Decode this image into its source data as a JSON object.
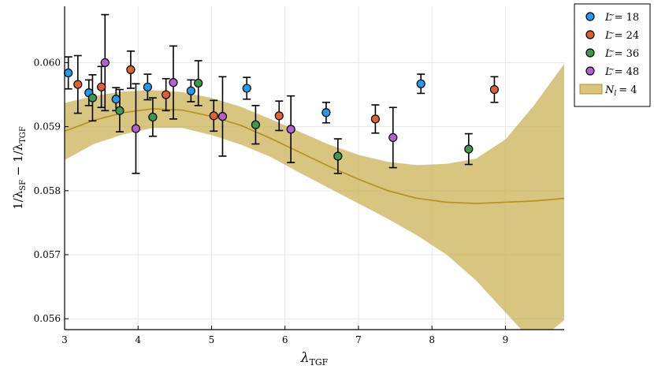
{
  "chart_data": {
    "type": "scatter",
    "xlabel_main": "λ",
    "xlabel_sub": "TGF",
    "ylabel_parts": {
      "prefix": "1/λ",
      "sub1": "SF",
      "middle": " − 1/λ",
      "sub2": "TGF"
    },
    "xlim": [
      3.0,
      9.8
    ],
    "ylim": [
      0.05583,
      0.06088
    ],
    "xticks": [
      3,
      4,
      5,
      6,
      7,
      8,
      9
    ],
    "yticks": [
      0.056,
      0.057,
      0.058,
      0.059,
      0.06
    ],
    "ytick_labels": [
      "0.056",
      "0.057",
      "0.058",
      "0.059",
      "0.060"
    ],
    "grid": true,
    "legend_position": "top-right",
    "series": [
      {
        "name": "L̃ = 18",
        "label_letter": "L",
        "label_value": "= 18",
        "color": "#1f9bf0",
        "points": [
          {
            "x": 3.05,
            "y": 0.05984,
            "err": 0.00025
          },
          {
            "x": 3.33,
            "y": 0.05953,
            "err": 0.0002
          },
          {
            "x": 3.7,
            "y": 0.05943,
            "err": 0.00018
          },
          {
            "x": 4.13,
            "y": 0.05962,
            "err": 0.0002
          },
          {
            "x": 4.72,
            "y": 0.05956,
            "err": 0.00017
          },
          {
            "x": 5.48,
            "y": 0.0596,
            "err": 0.00017
          },
          {
            "x": 6.56,
            "y": 0.05922,
            "err": 0.00016
          },
          {
            "x": 7.85,
            "y": 0.05967,
            "err": 0.00015
          }
        ]
      },
      {
        "name": "L̃ = 24",
        "label_letter": "L",
        "label_value": "= 24",
        "color": "#e0612f",
        "points": [
          {
            "x": 3.18,
            "y": 0.05966,
            "err": 0.00045
          },
          {
            "x": 3.5,
            "y": 0.05962,
            "err": 0.00032
          },
          {
            "x": 3.9,
            "y": 0.05989,
            "err": 0.00029
          },
          {
            "x": 4.38,
            "y": 0.0595,
            "err": 0.00025
          },
          {
            "x": 5.03,
            "y": 0.05917,
            "err": 0.00024
          },
          {
            "x": 5.92,
            "y": 0.05917,
            "err": 0.00023
          },
          {
            "x": 7.23,
            "y": 0.05912,
            "err": 0.00022
          },
          {
            "x": 8.85,
            "y": 0.05958,
            "err": 0.0002
          }
        ]
      },
      {
        "name": "L̃ = 36",
        "label_letter": "L",
        "label_value": "= 36",
        "color": "#3b9b4a",
        "points": [
          {
            "x": 3.38,
            "y": 0.05945,
            "err": 0.00036
          },
          {
            "x": 3.75,
            "y": 0.05925,
            "err": 0.00033
          },
          {
            "x": 4.2,
            "y": 0.05915,
            "err": 0.0003
          },
          {
            "x": 4.82,
            "y": 0.05968,
            "err": 0.00035
          },
          {
            "x": 5.6,
            "y": 0.05903,
            "err": 0.0003
          },
          {
            "x": 6.72,
            "y": 0.05854,
            "err": 0.00027
          },
          {
            "x": 8.5,
            "y": 0.05865,
            "err": 0.00024
          }
        ]
      },
      {
        "name": "L̃ = 48",
        "label_letter": "L",
        "label_value": "= 48",
        "color": "#b55fd1",
        "points": [
          {
            "x": 3.55,
            "y": 0.06,
            "err": 0.00075
          },
          {
            "x": 3.97,
            "y": 0.05897,
            "err": 0.0007
          },
          {
            "x": 4.48,
            "y": 0.05969,
            "err": 0.00057
          },
          {
            "x": 5.15,
            "y": 0.05916,
            "err": 0.00062
          },
          {
            "x": 6.08,
            "y": 0.05896,
            "err": 0.00052
          },
          {
            "x": 7.47,
            "y": 0.05883,
            "err": 0.00047
          }
        ]
      }
    ],
    "fit": {
      "name": "N_l = 4",
      "label_letter": "N",
      "label_sub": "l",
      "label_value": "= 4",
      "line_color": "#b5901a",
      "band_color": "#c9b255",
      "band_opacity": 0.75,
      "x": [
        3.0,
        3.4,
        3.8,
        4.2,
        4.6,
        5.0,
        5.4,
        5.8,
        6.2,
        6.6,
        7.0,
        7.4,
        7.8,
        8.2,
        8.6,
        9.0,
        9.4,
        9.8
      ],
      "y": [
        0.05893,
        0.0591,
        0.05922,
        0.05928,
        0.05926,
        0.05916,
        0.05902,
        0.05882,
        0.0586,
        0.05838,
        0.05818,
        0.058,
        0.05788,
        0.05782,
        0.0578,
        0.05782,
        0.05784,
        0.05788
      ],
      "upper": [
        0.05937,
        0.05948,
        0.05955,
        0.05957,
        0.05954,
        0.05945,
        0.05931,
        0.05912,
        0.05892,
        0.05872,
        0.05856,
        0.05845,
        0.0584,
        0.05842,
        0.0585,
        0.0588,
        0.05935,
        0.05998
      ],
      "lower": [
        0.05848,
        0.05873,
        0.05888,
        0.05898,
        0.05898,
        0.05887,
        0.05872,
        0.05853,
        0.05828,
        0.05804,
        0.0578,
        0.05756,
        0.0573,
        0.057,
        0.0566,
        0.0561,
        0.0556,
        0.05598
      ]
    }
  }
}
